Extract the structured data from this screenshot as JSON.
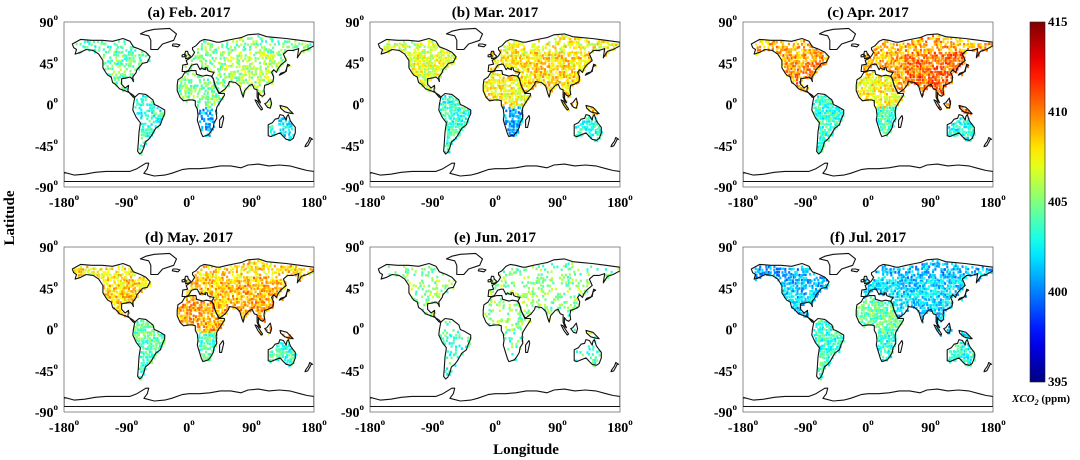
{
  "chart_data": {
    "type": "heatmap",
    "xlabel": "Longitude",
    "ylabel": "Latitude",
    "xlim": [
      -180,
      180
    ],
    "ylim": [
      -90,
      90
    ],
    "xticks": [
      "-180",
      "-90",
      "0",
      "90",
      "180"
    ],
    "yticks": [
      "90",
      "45",
      "0",
      "-45",
      "-90"
    ],
    "tick_suffix": "o",
    "colorbar": {
      "min": 395,
      "max": 415,
      "ticks": [
        "415",
        "410",
        "405",
        "400",
        "395"
      ],
      "label": "XCO",
      "label_sub": "2",
      "unit": "(ppm)",
      "colormap": "jet"
    },
    "panels": [
      {
        "title": "(a) Feb. 2017",
        "regions": {
          "na": 404.5,
          "eu": 405.2,
          "asia": 405.8,
          "sa": 403.3,
          "af_n": 405.0,
          "af_s": 401.0,
          "au": 402.5
        },
        "density": 0.55
      },
      {
        "title": "(b) Mar. 2017",
        "regions": {
          "na": 407.0,
          "eu": 407.8,
          "asia": 408.2,
          "sa": 403.4,
          "af_n": 407.5,
          "af_s": 400.8,
          "au": 403.2
        },
        "density": 0.85
      },
      {
        "title": "(c) Apr. 2017",
        "regions": {
          "na": 409.5,
          "eu": 409.3,
          "asia": 410.3,
          "sa": 403.5,
          "af_n": 407.6,
          "af_s": 403.8,
          "au": 403.0
        },
        "density": 0.9
      },
      {
        "title": "(d) May. 2017",
        "regions": {
          "na": 408.4,
          "eu": 408.6,
          "asia": 409.0,
          "sa": 404.2,
          "af_n": 409.2,
          "af_s": 404.0,
          "au": 403.6
        },
        "density": 0.85
      },
      {
        "title": "(e) Jun. 2017",
        "regions": {
          "na": 405.2,
          "eu": 405.5,
          "asia": 405.2,
          "sa": 403.8,
          "af_n": 405.4,
          "af_s": 404.0,
          "au": 404.0
        },
        "density": 0.35
      },
      {
        "title": "(f) Jul. 2017",
        "regions": {
          "na": 401.5,
          "eu": 401.8,
          "asia": 401.8,
          "sa": 403.5,
          "af_n": 404.3,
          "af_s": 403.3,
          "au": 403.2
        },
        "density": 0.85
      }
    ]
  }
}
